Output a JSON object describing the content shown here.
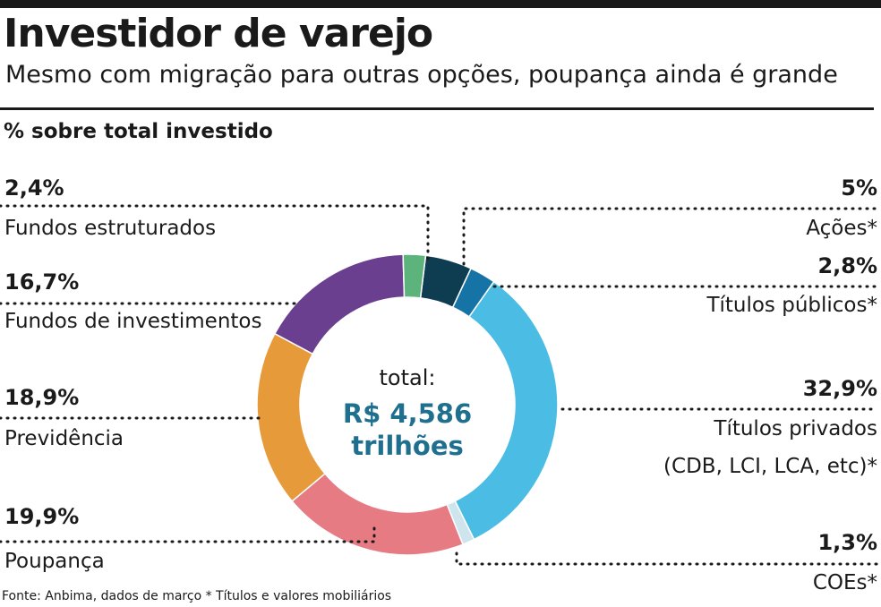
{
  "header": {
    "title": "Investidor de varejo",
    "subtitle": "Mesmo com migração para outras opções, poupança ainda é grande",
    "unit_label": "% sobre total investido"
  },
  "footer": {
    "source": "Fonte: Anbima, dados de março * Títulos e valores mobiliários"
  },
  "chart_data": {
    "type": "pie",
    "donut": true,
    "center_label": {
      "line1": "total:",
      "line2": "R$ 4,586",
      "line3": "trilhões"
    },
    "slices": [
      {
        "label": "Ações*",
        "value": 5.0,
        "value_label": "5%",
        "color": "#0e3d52"
      },
      {
        "label": "Títulos públicos*",
        "value": 2.8,
        "value_label": "2,8%",
        "color": "#1673a6"
      },
      {
        "label": "Títulos privados",
        "label_line2": "(CDB, LCI, LCA, etc)*",
        "value": 32.9,
        "value_label": "32,9%",
        "color": "#4bbde4"
      },
      {
        "label": "COEs*",
        "value": 1.3,
        "value_label": "1,3%",
        "color": "#cfe5ee"
      },
      {
        "label": "Poupança",
        "value": 19.9,
        "value_label": "19,9%",
        "color": "#e67b84"
      },
      {
        "label": "Previdência",
        "value": 18.9,
        "value_label": "18,9%",
        "color": "#e79a3a"
      },
      {
        "label": "Fundos de investimentos",
        "value": 16.7,
        "value_label": "16,7%",
        "color": "#6b3f8f"
      },
      {
        "label": "Fundos estruturados",
        "value": 2.4,
        "value_label": "2,4%",
        "color": "#5cb47c"
      }
    ]
  }
}
